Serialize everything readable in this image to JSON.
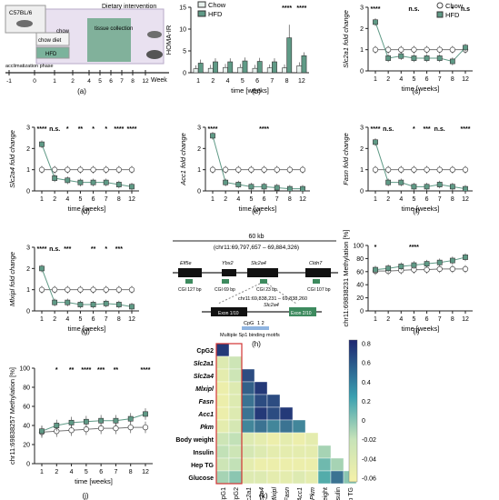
{
  "colors": {
    "hfd": "#5f9a86",
    "chow": "#ffffff",
    "axis": "#222222",
    "stars": "#222222",
    "timeline_bg": "#cfc3df",
    "collection_bg": "#6fa88c",
    "heat_high": "#1d2670",
    "heat_mid": "#c7e3b8",
    "heat_low": "#f5f1a8",
    "outline": "#d23333"
  },
  "panels": {
    "a": {
      "label": "(a)",
      "mouse_strain": "C57BL/6",
      "chow_label": "chow diet",
      "hfd_label": "HFD",
      "chow_short": "chow",
      "intervention_label": "Dietary intervention",
      "collection_label": "tissue collection",
      "acclimatization_label": "acclimatization phase",
      "timeline_ticks": [
        "-1",
        "0",
        "1",
        "2",
        "4",
        "5",
        "6",
        "7",
        "8",
        "12"
      ],
      "axis_unit": "Week"
    },
    "b": {
      "label": "(b)"
    },
    "c": {
      "label": "(c)"
    },
    "d": {
      "label": "(d)"
    },
    "e": {
      "label": "(e)"
    },
    "f": {
      "label": "(f)"
    },
    "g": {
      "label": "(g)"
    },
    "h": {
      "label": "(h)",
      "scale_label": "60 kb",
      "coords_label": "(chr11:69,797,657 – 69,884,326)",
      "genes": [
        "Elf5e",
        "Ybx2",
        "Slc2a4",
        "Cldn7"
      ],
      "cgi_labels": [
        "CGI 127 bp",
        "CGI 69 bp",
        "CGI 23 bp",
        "CGI 107 bp"
      ],
      "zoom_coords": "chr11:69,838,231 – 69,838,260",
      "zoom_gene": "Slc2a4",
      "exon_left": "Exon 1/10",
      "exon_right": "Exon 2/10",
      "cpg_label": "CpG",
      "cpg_numbers": "1   2",
      "motif_label": "Multiple Sp1 binding motifs"
    },
    "i": {
      "label": "(i)"
    },
    "j": {
      "label": "(j)"
    },
    "k": {
      "label": "(k)"
    }
  },
  "chart_data": [
    {
      "id": "b",
      "type": "bar",
      "ylabel": "HOMA-IR",
      "xlabel": "time [weeks]",
      "categories": [
        "1",
        "2",
        "4",
        "5",
        "6",
        "7",
        "8",
        "12"
      ],
      "ylim": [
        0,
        15
      ],
      "yticks": [
        "0",
        "5",
        "10",
        "15"
      ],
      "legend": [
        "Chow",
        "HFD"
      ],
      "series": [
        {
          "name": "Chow",
          "values": [
            0.9,
            1.0,
            1.2,
            1.2,
            1.0,
            1.1,
            1.1,
            1.6
          ]
        },
        {
          "name": "HFD",
          "values": [
            2.2,
            2.5,
            2.5,
            2.7,
            2.6,
            2.5,
            8.0,
            3.9
          ]
        }
      ],
      "annotations": [
        {
          "category": "8",
          "text": "****"
        },
        {
          "category": "12",
          "text": "****"
        }
      ]
    },
    {
      "id": "c",
      "type": "line",
      "ylabel": "Slc2a1 fold change",
      "xlabel": "time [weeks]",
      "x": [
        "1",
        "2",
        "4",
        "5",
        "6",
        "7",
        "8",
        "12"
      ],
      "ylim": [
        0,
        3
      ],
      "yticks": [
        "0",
        "1",
        "2",
        "3"
      ],
      "legend": [
        "Chow",
        "HFD"
      ],
      "series": [
        {
          "name": "Chow",
          "values": [
            1.0,
            1.0,
            1.0,
            1.0,
            1.0,
            1.0,
            1.0,
            1.0
          ]
        },
        {
          "name": "HFD",
          "values": [
            2.3,
            0.6,
            0.7,
            0.6,
            0.6,
            0.6,
            0.45,
            1.1
          ]
        }
      ],
      "annotations": [
        {
          "category": "1",
          "text": "****"
        },
        {
          "category": "5",
          "text": "n.s."
        },
        {
          "category": "8",
          "text": "*"
        },
        {
          "category": "12",
          "text": "n.s"
        }
      ]
    },
    {
      "id": "d",
      "type": "line",
      "ylabel": "Slc2a4 fold change",
      "xlabel": "time [weeks]",
      "x": [
        "1",
        "2",
        "4",
        "5",
        "6",
        "7",
        "8",
        "12"
      ],
      "ylim": [
        0,
        3
      ],
      "yticks": [
        "0",
        "1",
        "2",
        "3"
      ],
      "series": [
        {
          "name": "Chow",
          "values": [
            1.0,
            1.0,
            1.0,
            1.0,
            1.0,
            1.0,
            1.0,
            1.0
          ]
        },
        {
          "name": "HFD",
          "values": [
            2.2,
            0.6,
            0.5,
            0.4,
            0.4,
            0.4,
            0.3,
            0.2
          ]
        }
      ],
      "annotations": [
        {
          "category": "1",
          "text": "****"
        },
        {
          "category": "2",
          "text": "n.s."
        },
        {
          "category": "4",
          "text": "*"
        },
        {
          "category": "5",
          "text": "**"
        },
        {
          "category": "6",
          "text": "*"
        },
        {
          "category": "7",
          "text": "*"
        },
        {
          "category": "8",
          "text": "****"
        },
        {
          "category": "12",
          "text": "****"
        }
      ]
    },
    {
      "id": "e",
      "type": "line",
      "ylabel": "Acc1 fold change",
      "xlabel": "time [weeks]",
      "x": [
        "1",
        "2",
        "4",
        "5",
        "6",
        "7",
        "8",
        "12"
      ],
      "ylim": [
        0,
        3
      ],
      "yticks": [
        "0",
        "1",
        "2",
        "3"
      ],
      "series": [
        {
          "name": "Chow",
          "values": [
            1.0,
            1.0,
            1.0,
            1.0,
            1.0,
            1.0,
            1.0,
            1.0
          ]
        },
        {
          "name": "HFD",
          "values": [
            2.6,
            0.4,
            0.3,
            0.2,
            0.2,
            0.15,
            0.1,
            0.1
          ]
        }
      ],
      "annotations": [
        {
          "category": "1",
          "text": "****"
        },
        {
          "category": "6",
          "text": "****"
        }
      ]
    },
    {
      "id": "f",
      "type": "line",
      "ylabel": "Fasn fold change",
      "xlabel": "time [weeks]",
      "x": [
        "1",
        "2",
        "4",
        "5",
        "6",
        "7",
        "8",
        "12"
      ],
      "ylim": [
        0,
        3
      ],
      "yticks": [
        "0",
        "1",
        "2",
        "3"
      ],
      "series": [
        {
          "name": "Chow",
          "values": [
            1.0,
            1.0,
            1.0,
            1.0,
            1.0,
            1.0,
            1.0,
            1.0
          ]
        },
        {
          "name": "HFD",
          "values": [
            2.3,
            0.4,
            0.4,
            0.2,
            0.2,
            0.3,
            0.2,
            0.1
          ]
        }
      ],
      "annotations": [
        {
          "category": "1",
          "text": "****"
        },
        {
          "category": "2",
          "text": "n.s."
        },
        {
          "category": "5",
          "text": "*"
        },
        {
          "category": "6",
          "text": "***"
        },
        {
          "category": "7",
          "text": "n.s."
        },
        {
          "category": "12",
          "text": "****"
        }
      ]
    },
    {
      "id": "g",
      "type": "line",
      "ylabel": "Mlxipl fold change",
      "xlabel": "time [weeks]",
      "x": [
        "1",
        "2",
        "4",
        "5",
        "6",
        "7",
        "8",
        "12"
      ],
      "ylim": [
        0,
        3
      ],
      "yticks": [
        "0",
        "1",
        "2",
        "3"
      ],
      "series": [
        {
          "name": "Chow",
          "values": [
            1.0,
            1.0,
            1.0,
            1.0,
            1.0,
            1.0,
            1.0,
            1.0
          ]
        },
        {
          "name": "HFD",
          "values": [
            2.0,
            0.4,
            0.4,
            0.3,
            0.3,
            0.35,
            0.3,
            0.2
          ]
        }
      ],
      "annotations": [
        {
          "category": "1",
          "text": "****"
        },
        {
          "category": "2",
          "text": "n.s."
        },
        {
          "category": "4",
          "text": "***"
        },
        {
          "category": "6",
          "text": "**"
        },
        {
          "category": "7",
          "text": "*"
        },
        {
          "category": "8",
          "text": "***"
        }
      ]
    },
    {
      "id": "i",
      "type": "line",
      "ylabel": "chr11:69838231 Methylation [%]",
      "xlabel": "time [weeks]",
      "x": [
        "1",
        "2",
        "4",
        "5",
        "6",
        "7",
        "8",
        "12"
      ],
      "ylim": [
        0,
        100
      ],
      "yticks": [
        "0",
        "20",
        "40",
        "60",
        "80",
        "100"
      ],
      "series": [
        {
          "name": "Chow",
          "values": [
            61,
            61,
            62,
            63,
            63,
            64,
            64,
            64
          ]
        },
        {
          "name": "HFD",
          "values": [
            63,
            65,
            68,
            70,
            72,
            74,
            77,
            82
          ]
        }
      ],
      "annotations": [
        {
          "category": "1",
          "text": "*"
        },
        {
          "category": "5",
          "text": "****"
        }
      ]
    },
    {
      "id": "j",
      "type": "line",
      "ylabel": "chr11:69838257 Methylation [%]",
      "xlabel": "time [weeks]",
      "x": [
        "1",
        "2",
        "4",
        "5",
        "6",
        "7",
        "8",
        "12"
      ],
      "ylim": [
        0,
        100
      ],
      "yticks": [
        "0",
        "20",
        "40",
        "60",
        "80",
        "100"
      ],
      "series": [
        {
          "name": "Chow",
          "values": [
            33,
            34,
            35,
            36,
            37,
            37,
            38,
            38
          ]
        },
        {
          "name": "HFD",
          "values": [
            34,
            40,
            43,
            44,
            45,
            45,
            47,
            52
          ]
        }
      ],
      "annotations": [
        {
          "category": "2",
          "text": "*"
        },
        {
          "category": "4",
          "text": "**"
        },
        {
          "category": "5",
          "text": "****"
        },
        {
          "category": "6",
          "text": "***"
        },
        {
          "category": "7",
          "text": "**"
        },
        {
          "category": "12",
          "text": "****"
        }
      ]
    },
    {
      "id": "k",
      "type": "heatmap",
      "rows": [
        "CpG2",
        "Slc2a1",
        "Slc2a4",
        "Mlxipl",
        "Fasn",
        "Acc1",
        "Pkm",
        "Body weight",
        "Insulin",
        "Hep TG",
        "Glucose"
      ],
      "cols": [
        "CpG1",
        "CpG2",
        "Slc2a1",
        "Slc2a4",
        "Mlxipl",
        "Fasn",
        "Acc1",
        "Pkm",
        "Body weight",
        "Insulin",
        "Hep TG"
      ],
      "vlim": [
        -0.06,
        0.8
      ],
      "colorbar_ticks": [
        "0.8",
        "0.6",
        "0.4",
        "0.2",
        "0",
        "-0.02",
        "-0.04",
        "-0.06"
      ],
      "values": [
        [
          0.75
        ],
        [
          0.1,
          0.2
        ],
        [
          0.05,
          0.2,
          0.7
        ],
        [
          0.0,
          0.1,
          0.65,
          0.75
        ],
        [
          0.0,
          0.1,
          0.6,
          0.7,
          0.7
        ],
        [
          0.0,
          0.1,
          0.6,
          0.75,
          0.7,
          0.75
        ],
        [
          0.05,
          0.15,
          0.55,
          0.6,
          0.55,
          0.6,
          0.55
        ],
        [
          0.2,
          0.25,
          0.1,
          0.05,
          0.0,
          0.05,
          0.0,
          0.05
        ],
        [
          0.25,
          0.2,
          0.15,
          0.1,
          0.05,
          0.05,
          0.05,
          0.05,
          0.3
        ],
        [
          0.2,
          0.25,
          0.05,
          0.0,
          0.0,
          0.0,
          0.0,
          0.0,
          0.4,
          0.3
        ],
        [
          0.3,
          0.35,
          0.1,
          0.1,
          0.05,
          0.05,
          0.1,
          0.05,
          0.45,
          0.6,
          0.35
        ]
      ]
    }
  ]
}
